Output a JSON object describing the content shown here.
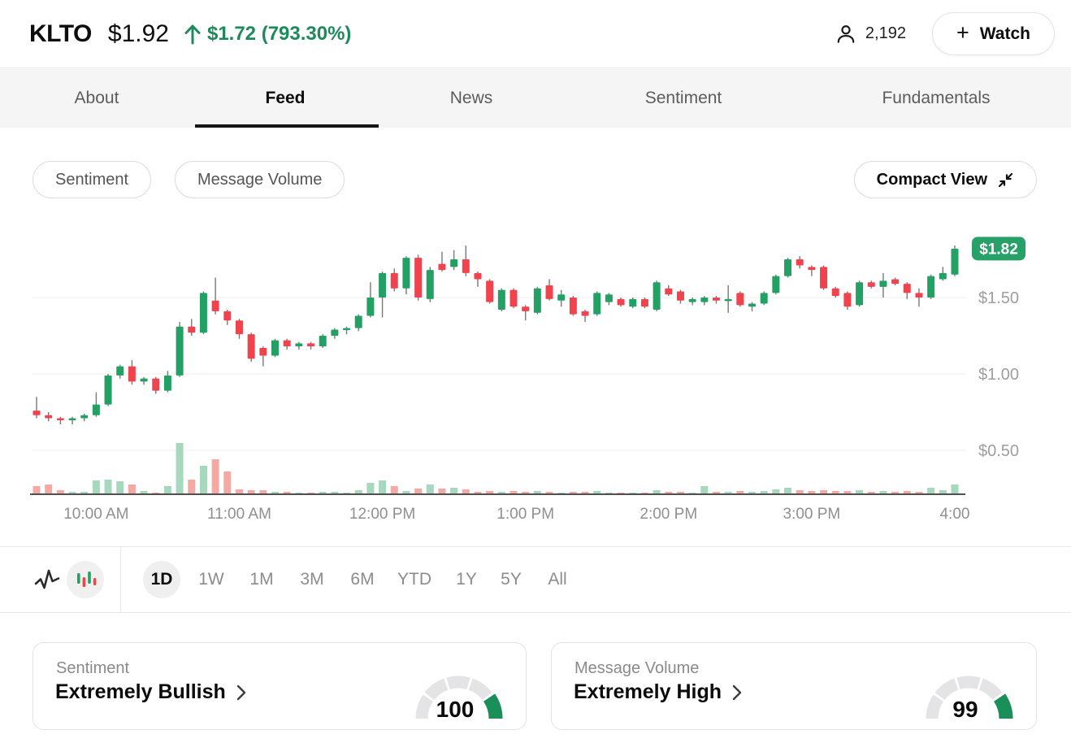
{
  "header": {
    "ticker": "KLTO",
    "price": "$1.92",
    "change": "$1.72 (793.30%)",
    "watchers": "2,192",
    "watch_plus": "+",
    "watch_label": "Watch"
  },
  "tabs": [
    {
      "label": "About",
      "active": false
    },
    {
      "label": "Feed",
      "active": true
    },
    {
      "label": "News",
      "active": false
    },
    {
      "label": "Sentiment",
      "active": false
    },
    {
      "label": "Fundamentals",
      "active": false
    }
  ],
  "controls": {
    "pills": [
      "Sentiment",
      "Message Volume"
    ],
    "compact_label": "Compact View"
  },
  "chart_data": {
    "type": "candlestick",
    "title": "KLTO intraday 1D candlestick chart with volume",
    "interval": "5min",
    "x_ticks": [
      "10:00 AM",
      "11:00 AM",
      "12:00 PM",
      "1:00 PM",
      "2:00 PM",
      "3:00 PM",
      "4:00"
    ],
    "x_tick_indices": [
      5,
      17,
      29,
      41,
      53,
      65,
      77
    ],
    "y_ticks": [
      "$1.50",
      "$1.00",
      "$0.50"
    ],
    "y_tick_prices": [
      1.5,
      1.0,
      0.5
    ],
    "ylim": [
      0.45,
      1.95
    ],
    "current_price": 1.82,
    "current_price_label": "$1.82",
    "grid": true,
    "legend": "none",
    "volumes_relative": true,
    "candles": [
      [
        "9:35",
        0.76,
        0.85,
        0.71,
        0.73,
        10
      ],
      [
        "9:40",
        0.73,
        0.75,
        0.69,
        0.71,
        12
      ],
      [
        "9:45",
        0.71,
        0.72,
        0.67,
        0.7,
        5
      ],
      [
        "9:50",
        0.7,
        0.72,
        0.67,
        0.71,
        3
      ],
      [
        "9:55",
        0.71,
        0.74,
        0.69,
        0.73,
        3
      ],
      [
        "10:00",
        0.73,
        0.88,
        0.72,
        0.8,
        17
      ],
      [
        "10:05",
        0.8,
        1.0,
        0.79,
        0.99,
        18
      ],
      [
        "10:10",
        0.99,
        1.06,
        0.97,
        1.05,
        16
      ],
      [
        "10:15",
        1.05,
        1.09,
        0.93,
        0.95,
        12
      ],
      [
        "10:20",
        0.95,
        0.98,
        0.93,
        0.97,
        4
      ],
      [
        "10:25",
        0.97,
        0.98,
        0.87,
        0.89,
        2
      ],
      [
        "10:30",
        0.89,
        1.02,
        0.88,
        0.99,
        10
      ],
      [
        "10:35",
        0.99,
        1.34,
        0.98,
        1.31,
        63
      ],
      [
        "10:40",
        1.31,
        1.36,
        1.25,
        1.27,
        18
      ],
      [
        "10:45",
        1.27,
        1.54,
        1.26,
        1.53,
        35
      ],
      [
        "10:50",
        1.48,
        1.63,
        1.39,
        1.41,
        43
      ],
      [
        "10:55",
        1.41,
        1.42,
        1.32,
        1.35,
        28
      ],
      [
        "11:00",
        1.35,
        1.36,
        1.23,
        1.26,
        6
      ],
      [
        "11:05",
        1.26,
        1.27,
        1.08,
        1.1,
        5
      ],
      [
        "11:10",
        1.17,
        1.18,
        1.05,
        1.12,
        5
      ],
      [
        "11:15",
        1.12,
        1.23,
        1.11,
        1.22,
        3
      ],
      [
        "11:20",
        1.22,
        1.23,
        1.16,
        1.18,
        3
      ],
      [
        "11:25",
        1.18,
        1.21,
        1.16,
        1.2,
        2
      ],
      [
        "11:30",
        1.2,
        1.21,
        1.16,
        1.18,
        2
      ],
      [
        "11:35",
        1.18,
        1.26,
        1.17,
        1.25,
        3
      ],
      [
        "11:40",
        1.25,
        1.3,
        1.23,
        1.29,
        3
      ],
      [
        "11:45",
        1.29,
        1.31,
        1.26,
        1.3,
        2
      ],
      [
        "11:50",
        1.3,
        1.39,
        1.28,
        1.38,
        5
      ],
      [
        "11:55",
        1.38,
        1.6,
        1.37,
        1.5,
        14
      ],
      [
        "12:00",
        1.5,
        1.67,
        1.37,
        1.66,
        17
      ],
      [
        "12:05",
        1.66,
        1.69,
        1.54,
        1.56,
        10
      ],
      [
        "12:10",
        1.56,
        1.77,
        1.52,
        1.76,
        4
      ],
      [
        "12:15",
        1.76,
        1.78,
        1.48,
        1.5,
        7
      ],
      [
        "12:20",
        1.49,
        1.7,
        1.47,
        1.68,
        12
      ],
      [
        "12:25",
        1.72,
        1.8,
        1.67,
        1.68,
        7
      ],
      [
        "12:30",
        1.7,
        1.81,
        1.68,
        1.75,
        8
      ],
      [
        "12:35",
        1.75,
        1.84,
        1.64,
        1.66,
        6
      ],
      [
        "12:40",
        1.66,
        1.67,
        1.57,
        1.62,
        3
      ],
      [
        "12:45",
        1.61,
        1.62,
        1.46,
        1.47,
        4
      ],
      [
        "12:50",
        1.42,
        1.56,
        1.41,
        1.55,
        3
      ],
      [
        "12:55",
        1.55,
        1.56,
        1.43,
        1.44,
        4
      ],
      [
        "1:00",
        1.44,
        1.45,
        1.35,
        1.41,
        3
      ],
      [
        "1:05",
        1.4,
        1.57,
        1.39,
        1.56,
        4
      ],
      [
        "1:10",
        1.58,
        1.62,
        1.48,
        1.49,
        3
      ],
      [
        "1:15",
        1.48,
        1.55,
        1.44,
        1.52,
        2
      ],
      [
        "1:20",
        1.5,
        1.51,
        1.38,
        1.39,
        3
      ],
      [
        "1:25",
        1.41,
        1.42,
        1.34,
        1.38,
        3
      ],
      [
        "1:30",
        1.39,
        1.54,
        1.38,
        1.53,
        4
      ],
      [
        "1:35",
        1.47,
        1.53,
        1.45,
        1.52,
        2
      ],
      [
        "1:40",
        1.49,
        1.5,
        1.44,
        1.45,
        2
      ],
      [
        "1:45",
        1.44,
        1.5,
        1.43,
        1.49,
        2
      ],
      [
        "1:50",
        1.49,
        1.5,
        1.43,
        1.44,
        2
      ],
      [
        "1:55",
        1.42,
        1.61,
        1.41,
        1.6,
        5
      ],
      [
        "2:00",
        1.56,
        1.58,
        1.51,
        1.52,
        3
      ],
      [
        "2:05",
        1.54,
        1.55,
        1.46,
        1.48,
        3
      ],
      [
        "2:10",
        1.47,
        1.5,
        1.45,
        1.49,
        2
      ],
      [
        "2:15",
        1.47,
        1.51,
        1.45,
        1.5,
        10
      ],
      [
        "2:20",
        1.5,
        1.51,
        1.46,
        1.48,
        3
      ],
      [
        "2:25",
        1.48,
        1.58,
        1.4,
        1.49,
        3
      ],
      [
        "2:30",
        1.53,
        1.54,
        1.44,
        1.45,
        4
      ],
      [
        "2:35",
        1.44,
        1.47,
        1.41,
        1.46,
        3
      ],
      [
        "2:40",
        1.46,
        1.54,
        1.45,
        1.53,
        4
      ],
      [
        "2:45",
        1.53,
        1.65,
        1.52,
        1.64,
        6
      ],
      [
        "2:50",
        1.64,
        1.76,
        1.63,
        1.75,
        8
      ],
      [
        "2:55",
        1.75,
        1.77,
        1.69,
        1.71,
        5
      ],
      [
        "3:00",
        1.7,
        1.71,
        1.64,
        1.68,
        4
      ],
      [
        "3:05",
        1.7,
        1.71,
        1.55,
        1.56,
        5
      ],
      [
        "3:10",
        1.56,
        1.57,
        1.5,
        1.51,
        4
      ],
      [
        "3:15",
        1.53,
        1.54,
        1.42,
        1.44,
        4
      ],
      [
        "3:20",
        1.45,
        1.61,
        1.44,
        1.6,
        5
      ],
      [
        "3:25",
        1.6,
        1.61,
        1.56,
        1.57,
        3
      ],
      [
        "3:30",
        1.57,
        1.66,
        1.5,
        1.61,
        4
      ],
      [
        "3:35",
        1.62,
        1.63,
        1.58,
        1.59,
        3
      ],
      [
        "3:40",
        1.59,
        1.6,
        1.49,
        1.53,
        4
      ],
      [
        "3:45",
        1.53,
        1.56,
        1.44,
        1.5,
        3
      ],
      [
        "3:50",
        1.5,
        1.65,
        1.49,
        1.64,
        8
      ],
      [
        "3:55",
        1.62,
        1.7,
        1.61,
        1.66,
        5
      ],
      [
        "4:00",
        1.65,
        1.84,
        1.64,
        1.82,
        12
      ]
    ]
  },
  "toolbar": {
    "ranges": [
      {
        "label": "1D",
        "active": true
      },
      {
        "label": "1W",
        "active": false
      },
      {
        "label": "1M",
        "active": false
      },
      {
        "label": "3M",
        "active": false
      },
      {
        "label": "6M",
        "active": false
      },
      {
        "label": "YTD",
        "active": false
      },
      {
        "label": "1Y",
        "active": false
      },
      {
        "label": "5Y",
        "active": false
      },
      {
        "label": "All",
        "active": false
      }
    ]
  },
  "cards": [
    {
      "label": "Sentiment",
      "value": "Extremely Bullish",
      "score": "100",
      "segments": 5,
      "filled_segment": 4
    },
    {
      "label": "Message Volume",
      "value": "Extremely High",
      "score": "99",
      "segments": 5,
      "filled_segment": 4
    }
  ],
  "colors": {
    "up": "#23a164",
    "down": "#f0434e",
    "vol_up": "#a5d8bd",
    "vol_down": "#f5a9a2",
    "badge": "#28a169",
    "accent": "#1d8a5c",
    "gauge_fill": "#1b8f58",
    "gauge_track": "#e4e4e6",
    "wick": "#787878",
    "grid": "#ededed",
    "axis": "#4f4f4f",
    "tick_text": "#8f8f8f",
    "price_text": "#9e9e9e"
  }
}
